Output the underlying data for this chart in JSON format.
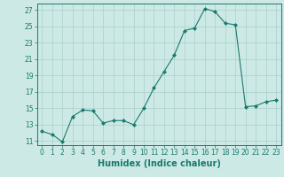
{
  "x": [
    0,
    1,
    2,
    3,
    4,
    5,
    6,
    7,
    8,
    9,
    10,
    11,
    12,
    13,
    14,
    15,
    16,
    17,
    18,
    19,
    20,
    21,
    22,
    23
  ],
  "y": [
    12.2,
    11.8,
    10.9,
    14.0,
    14.8,
    14.7,
    13.2,
    13.5,
    13.5,
    13.0,
    15.0,
    17.5,
    19.5,
    21.5,
    24.5,
    24.8,
    27.2,
    26.8,
    25.4,
    25.2,
    15.2,
    15.3,
    15.8,
    16.0
  ],
  "xlabel": "Humidex (Indice chaleur)",
  "xlim": [
    -0.5,
    23.5
  ],
  "ylim": [
    10.5,
    27.8
  ],
  "yticks": [
    11,
    13,
    15,
    17,
    19,
    21,
    23,
    25,
    27
  ],
  "xticks": [
    0,
    1,
    2,
    3,
    4,
    5,
    6,
    7,
    8,
    9,
    10,
    11,
    12,
    13,
    14,
    15,
    16,
    17,
    18,
    19,
    20,
    21,
    22,
    23
  ],
  "line_color": "#1a7a6e",
  "marker_color": "#1a7a6e",
  "bg_color": "#cce9e5",
  "grid_color": "#aacfcb",
  "tick_label_fontsize": 5.5,
  "xlabel_fontsize": 7.0
}
